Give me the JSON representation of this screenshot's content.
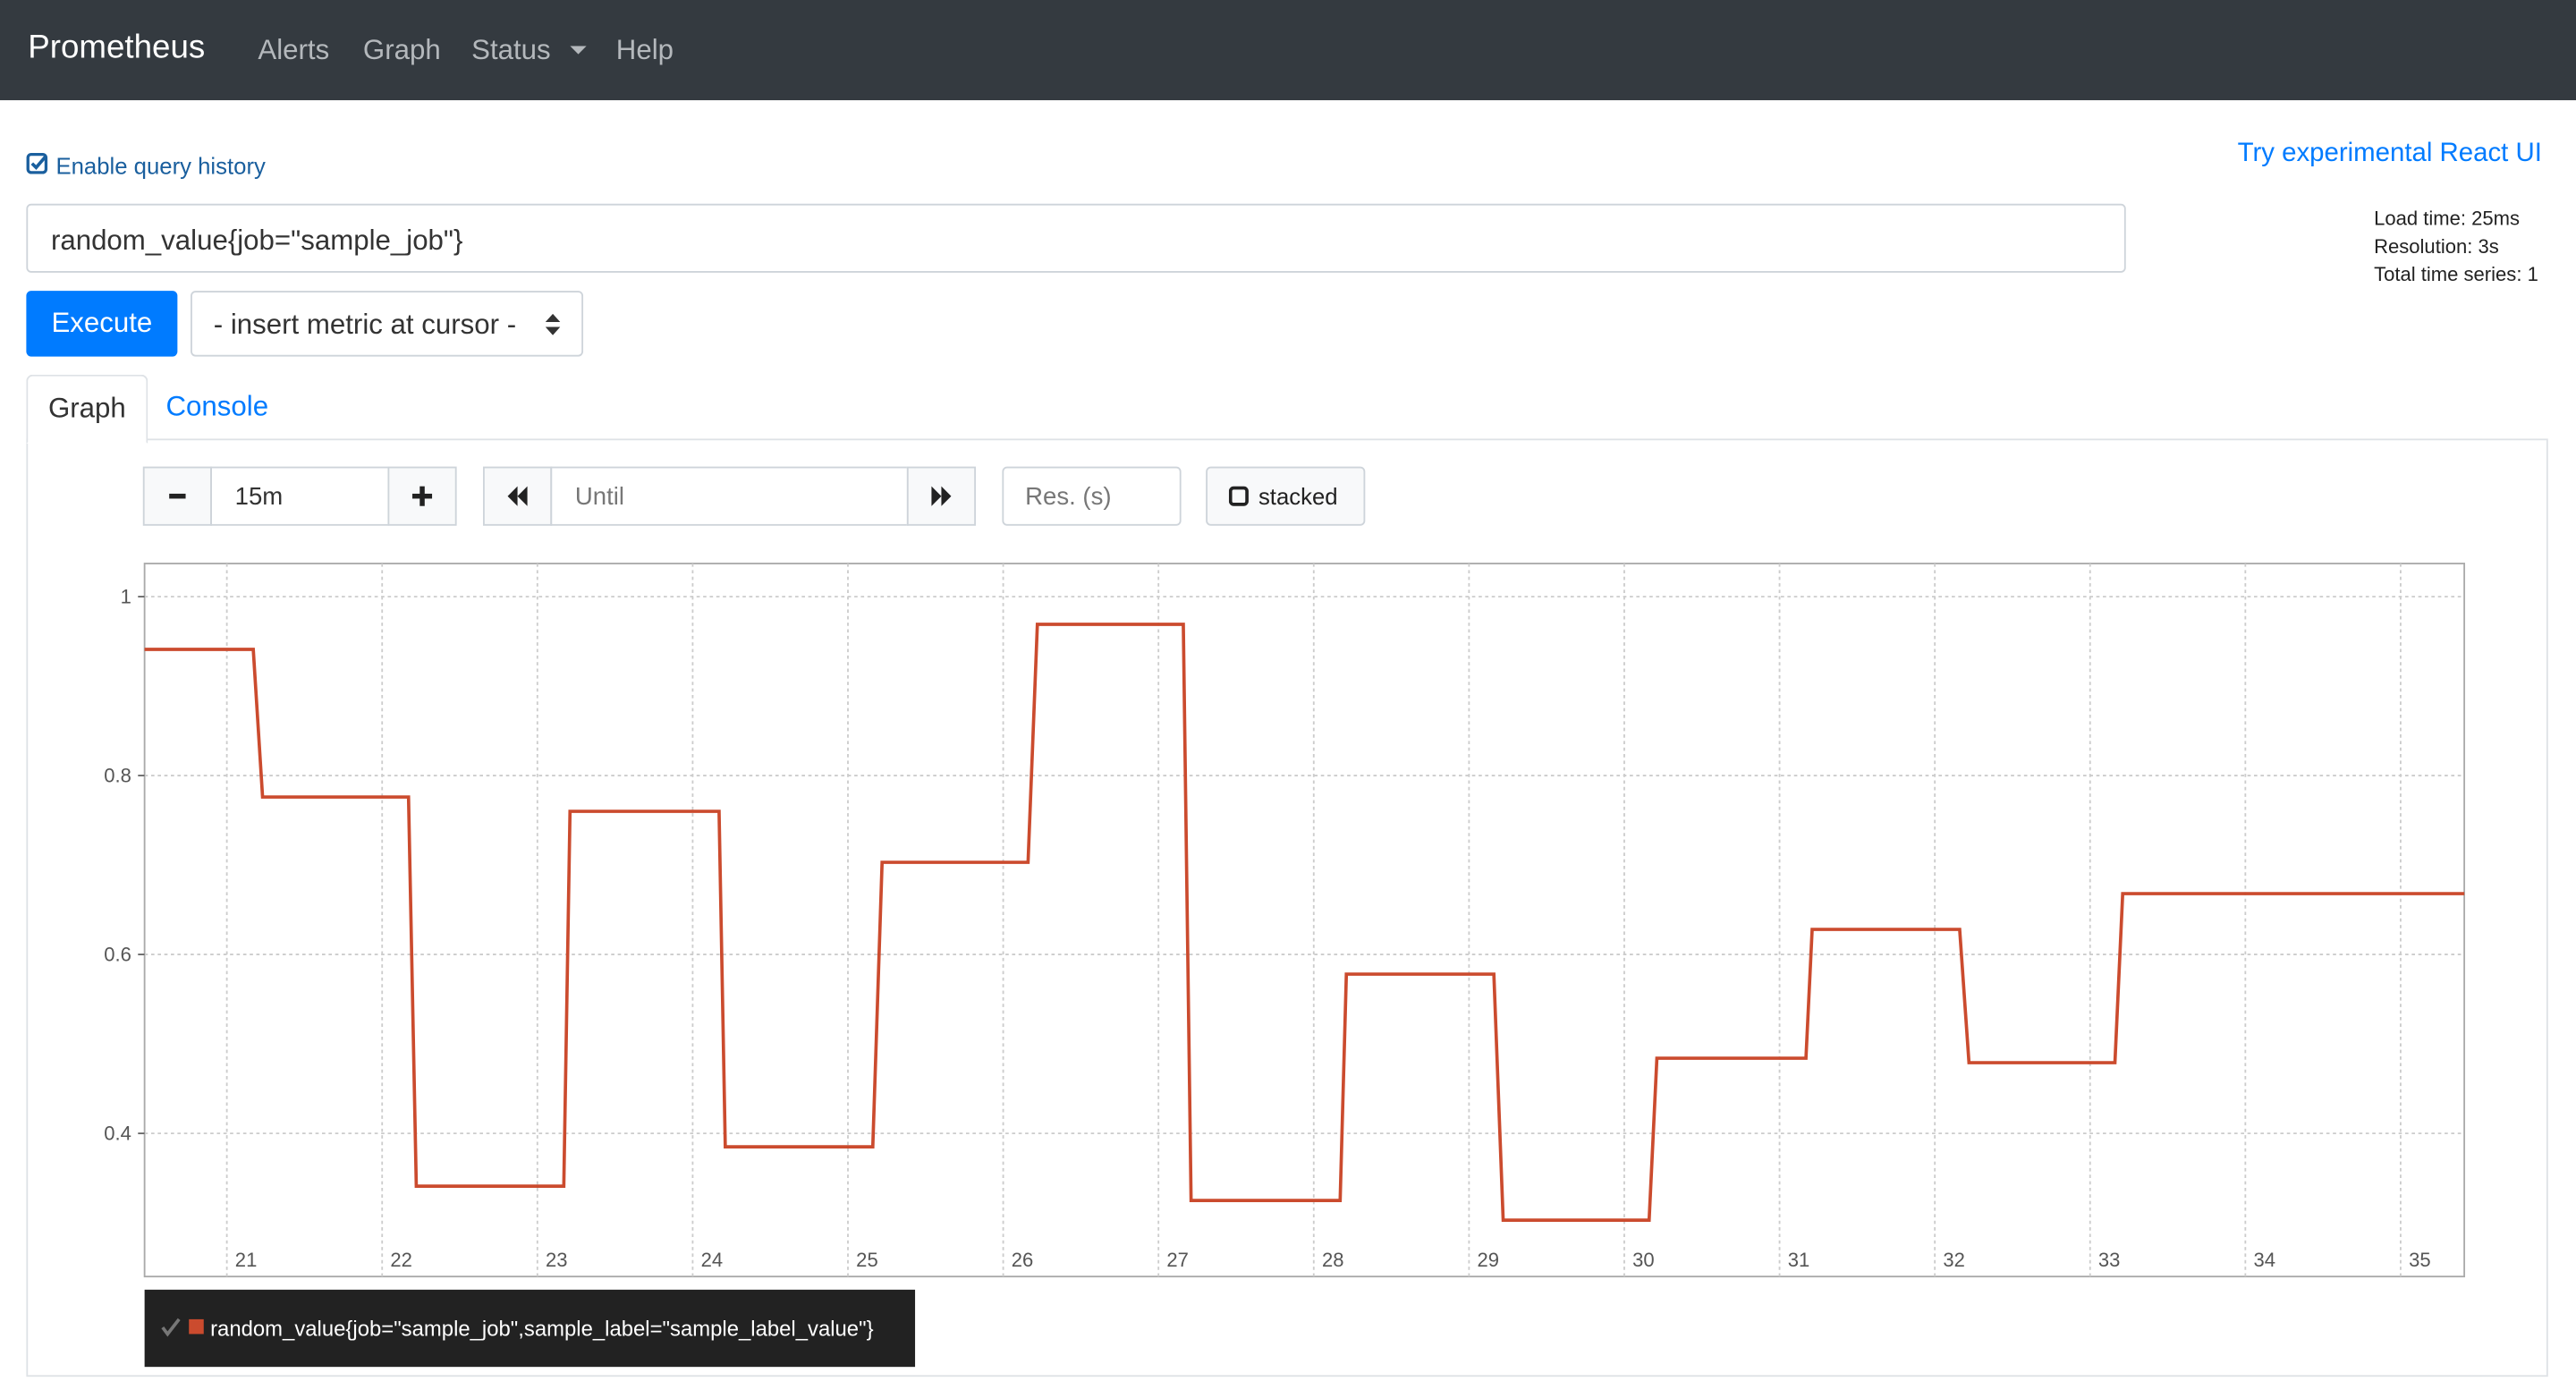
{
  "navbar": {
    "brand": "Prometheus",
    "links": [
      "Alerts",
      "Graph",
      "Status",
      "Help"
    ]
  },
  "query_history": "Enable query history",
  "react_ui_link": "Try experimental React UI",
  "expression": "random_value{job=\"sample_job\"}",
  "stats": [
    "Load time: 25ms",
    "Resolution: 3s",
    "Total time series: 1"
  ],
  "execute": "Execute",
  "metric_select": "- insert metric at cursor -",
  "tabs": [
    "Graph",
    "Console"
  ],
  "range": "15m",
  "until_placeholder": "Until",
  "resolution_placeholder": "Res. (s)",
  "stacked": "stacked",
  "chart_data": {
    "type": "line",
    "x": [
      20.47,
      21.17,
      21.23,
      22.17,
      22.22,
      23.17,
      23.21,
      24.17,
      24.21,
      25.16,
      25.22,
      26.16,
      26.22,
      27.16,
      27.21,
      28.17,
      28.21,
      29.16,
      29.22,
      30.16,
      30.21,
      31.17,
      31.21,
      32.16,
      32.22,
      33.16,
      33.21,
      35.41
    ],
    "series": [
      {
        "name": "random_value{job=\"sample_job\",sample_label=\"sample_label_value\"}",
        "color": "#cb4b2e",
        "values": [
          0.941,
          0.941,
          0.776,
          0.776,
          0.341,
          0.341,
          0.76,
          0.76,
          0.385,
          0.385,
          0.703,
          0.703,
          0.969,
          0.969,
          0.325,
          0.325,
          0.578,
          0.578,
          0.303,
          0.303,
          0.484,
          0.484,
          0.628,
          0.628,
          0.479,
          0.479,
          0.668,
          0.668
        ]
      }
    ],
    "xlim": [
      20.47,
      35.41
    ],
    "xticks": [
      21,
      22,
      23,
      24,
      25,
      26,
      27,
      28,
      29,
      30,
      31,
      32,
      33,
      34,
      35
    ],
    "ylim": [
      0.24,
      1.037
    ],
    "yticks": [
      0.4,
      0.6,
      0.8,
      1
    ],
    "grid": true
  }
}
